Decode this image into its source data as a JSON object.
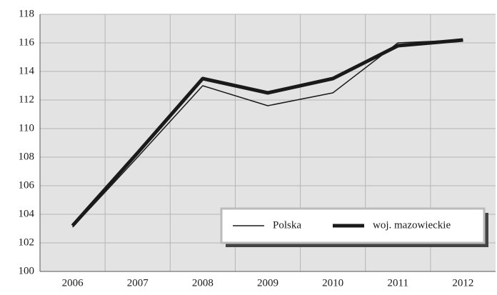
{
  "chart_data": {
    "type": "line",
    "categories": [
      "2006",
      "2007",
      "2008",
      "2009",
      "2010",
      "2011",
      "2012"
    ],
    "series": [
      {
        "name": "Polska",
        "color": "#1a1a1a",
        "line_width": 1.5,
        "values": [
          103.1,
          108.0,
          113.0,
          111.6,
          112.5,
          116.0,
          116.2
        ]
      },
      {
        "name": "woj. mazowieckie",
        "color": "#1a1a1a",
        "line_width": 5,
        "values": [
          103.2,
          108.3,
          113.5,
          112.5,
          113.5,
          115.8,
          116.2
        ]
      }
    ],
    "ylim": [
      100,
      118
    ],
    "yticks": [
      100,
      102,
      104,
      106,
      108,
      110,
      112,
      114,
      116,
      118
    ],
    "grid": true,
    "legend": "lower right"
  }
}
